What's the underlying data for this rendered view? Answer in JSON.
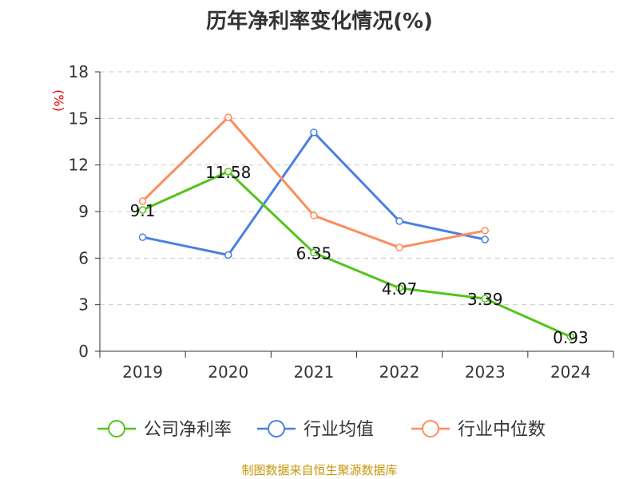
{
  "chart_data": {
    "type": "line",
    "title": "历年净利率变化情况(%)",
    "ylabel": "(%)",
    "xlabel": "",
    "categories": [
      "2019",
      "2020",
      "2021",
      "2022",
      "2023",
      "2024"
    ],
    "ylim": [
      0,
      18
    ],
    "yticks": [
      0,
      3,
      6,
      9,
      12,
      15,
      18
    ],
    "grid": true,
    "legend_position": "bottom",
    "series": [
      {
        "name": "公司净利率",
        "color": "#52c41a",
        "values": [
          9.1,
          11.58,
          6.35,
          4.07,
          3.39,
          0.93
        ],
        "labels": [
          "9.1",
          "11.58",
          "6.35",
          "4.07",
          "3.39",
          "0.93"
        ]
      },
      {
        "name": "行业均值",
        "color": "#4a7fe0",
        "values": [
          7.35,
          6.2,
          14.1,
          8.38,
          7.2,
          null
        ]
      },
      {
        "name": "行业中位数",
        "color": "#ff8c5a",
        "values": [
          9.67,
          15.07,
          8.74,
          6.69,
          7.77,
          null
        ]
      }
    ]
  },
  "source": "制图数据来自恒生聚源数据库"
}
